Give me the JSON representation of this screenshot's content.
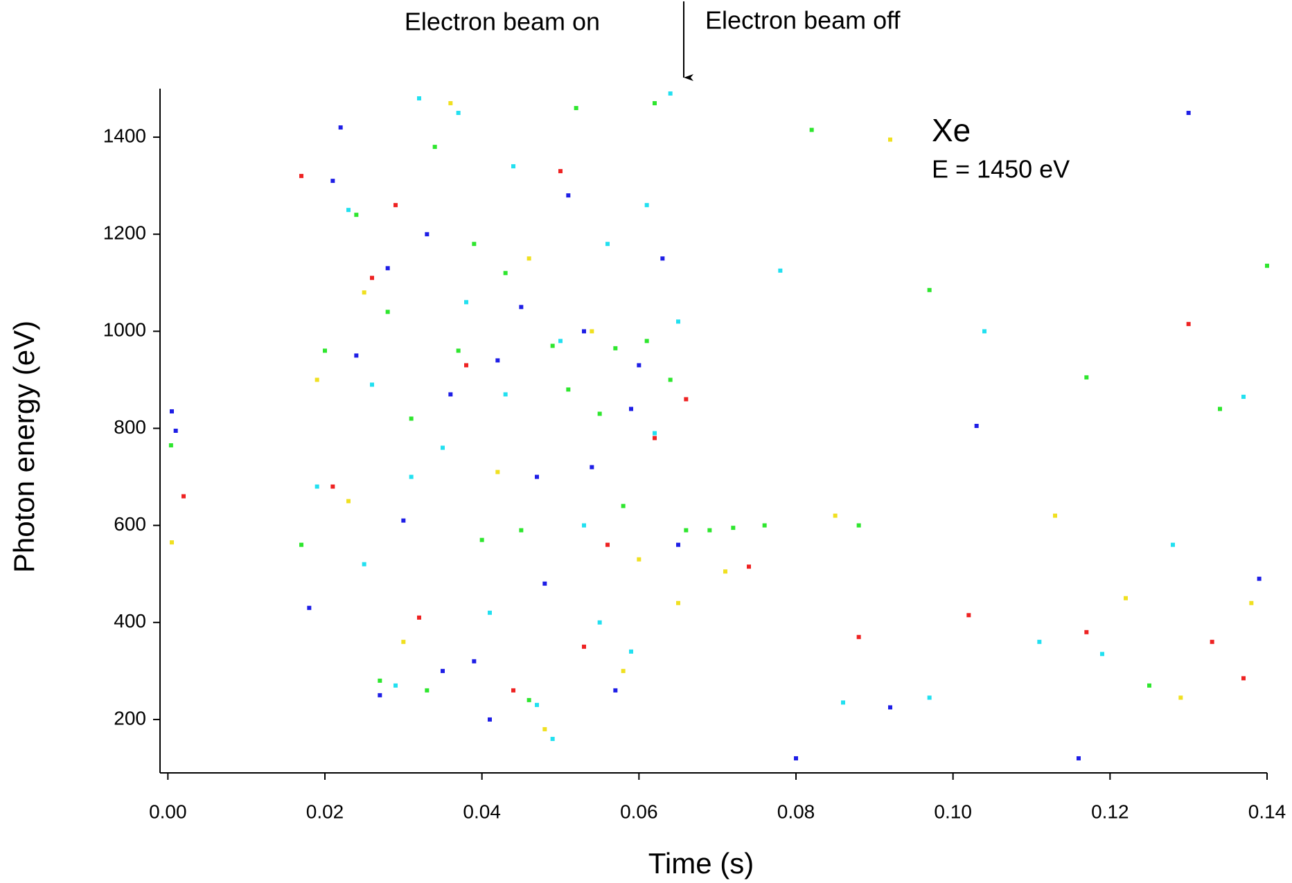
{
  "chart_data": {
    "type": "scatter",
    "xlabel": "Time (s)",
    "ylabel": "Photon energy (eV)",
    "annotations": [
      "Electron beam on",
      "Electron beam off",
      "Xe",
      "E = 1450 eV"
    ],
    "xlim": [
      -0.001,
      0.14
    ],
    "ylim": [
      90,
      1500
    ],
    "xticks": [
      {
        "value": 0,
        "label": "0.00"
      },
      {
        "value": 0.02,
        "label": "0.02"
      },
      {
        "value": 0.04,
        "label": "0.04"
      },
      {
        "value": 0.06,
        "label": "0.06"
      },
      {
        "value": 0.08,
        "label": "0.08"
      },
      {
        "value": 0.1,
        "label": "0.10"
      },
      {
        "value": 0.12,
        "label": "0.12"
      },
      {
        "value": 0.14,
        "label": "0.14"
      }
    ],
    "yticks": [
      200,
      400,
      600,
      800,
      1000,
      1200,
      1400
    ],
    "series": [
      {
        "color": "#1e1ee6",
        "x": [
          0.018,
          0.021,
          0.024,
          0.027,
          0.03,
          0.033,
          0.036,
          0.039,
          0.042,
          0.045,
          0.048,
          0.051,
          0.054,
          0.057,
          0.06,
          0.063,
          0.065,
          0.022,
          0.035,
          0.047,
          0.059,
          0.028,
          0.041,
          0.053,
          0.0005,
          0.001,
          0.08,
          0.092,
          0.103,
          0.116,
          0.13,
          0.139
        ],
        "y": [
          430,
          1310,
          950,
          250,
          610,
          1200,
          870,
          320,
          940,
          1050,
          480,
          1280,
          720,
          260,
          930,
          1150,
          560,
          1420,
          300,
          700,
          840,
          1130,
          200,
          1000,
          835,
          795,
          120,
          225,
          805,
          120,
          1450,
          490
        ]
      },
      {
        "color": "#22e0f0",
        "x": [
          0.019,
          0.023,
          0.026,
          0.029,
          0.032,
          0.035,
          0.038,
          0.041,
          0.044,
          0.047,
          0.05,
          0.053,
          0.056,
          0.059,
          0.062,
          0.065,
          0.025,
          0.037,
          0.049,
          0.061,
          0.031,
          0.043,
          0.055,
          0.064,
          0.078,
          0.086,
          0.097,
          0.104,
          0.111,
          0.119,
          0.128,
          0.137
        ],
        "y": [
          680,
          1250,
          890,
          270,
          1480,
          760,
          1060,
          420,
          1340,
          230,
          980,
          600,
          1180,
          340,
          790,
          1020,
          520,
          1450,
          160,
          1260,
          700,
          870,
          400,
          1490,
          1125,
          235,
          245,
          1000,
          360,
          335,
          560,
          865
        ]
      },
      {
        "color": "#2ee62e",
        "x": [
          0.017,
          0.02,
          0.024,
          0.027,
          0.031,
          0.034,
          0.037,
          0.04,
          0.043,
          0.046,
          0.049,
          0.052,
          0.055,
          0.058,
          0.061,
          0.064,
          0.066,
          0.028,
          0.039,
          0.051,
          0.062,
          0.033,
          0.045,
          0.057,
          0.0004,
          0.069,
          0.072,
          0.076,
          0.082,
          0.088,
          0.097,
          0.117,
          0.125,
          0.134,
          0.14
        ],
        "y": [
          560,
          960,
          1240,
          280,
          820,
          1380,
          960,
          570,
          1120,
          240,
          970,
          1460,
          830,
          640,
          980,
          900,
          590,
          1040,
          1180,
          880,
          1470,
          260,
          590,
          965,
          765,
          590,
          595,
          600,
          1415,
          600,
          1085,
          905,
          270,
          840,
          1135
        ]
      },
      {
        "color": "#f0e020",
        "x": [
          0.019,
          0.025,
          0.03,
          0.036,
          0.042,
          0.048,
          0.054,
          0.06,
          0.065,
          0.023,
          0.046,
          0.058,
          0.0005,
          0.071,
          0.085,
          0.092,
          0.113,
          0.122,
          0.129,
          0.138
        ],
        "y": [
          900,
          1080,
          360,
          1470,
          710,
          180,
          1000,
          530,
          440,
          650,
          1150,
          300,
          565,
          505,
          620,
          1395,
          620,
          450,
          245,
          440
        ]
      },
      {
        "color": "#ee2222",
        "x": [
          0.017,
          0.021,
          0.026,
          0.032,
          0.038,
          0.044,
          0.05,
          0.056,
          0.062,
          0.066,
          0.029,
          0.053,
          0.002,
          0.074,
          0.088,
          0.102,
          0.117,
          0.13,
          0.133,
          0.137
        ],
        "y": [
          1320,
          680,
          1110,
          410,
          930,
          260,
          1330,
          560,
          780,
          860,
          1260,
          350,
          660,
          515,
          370,
          415,
          380,
          1015,
          360,
          285
        ]
      }
    ]
  }
}
